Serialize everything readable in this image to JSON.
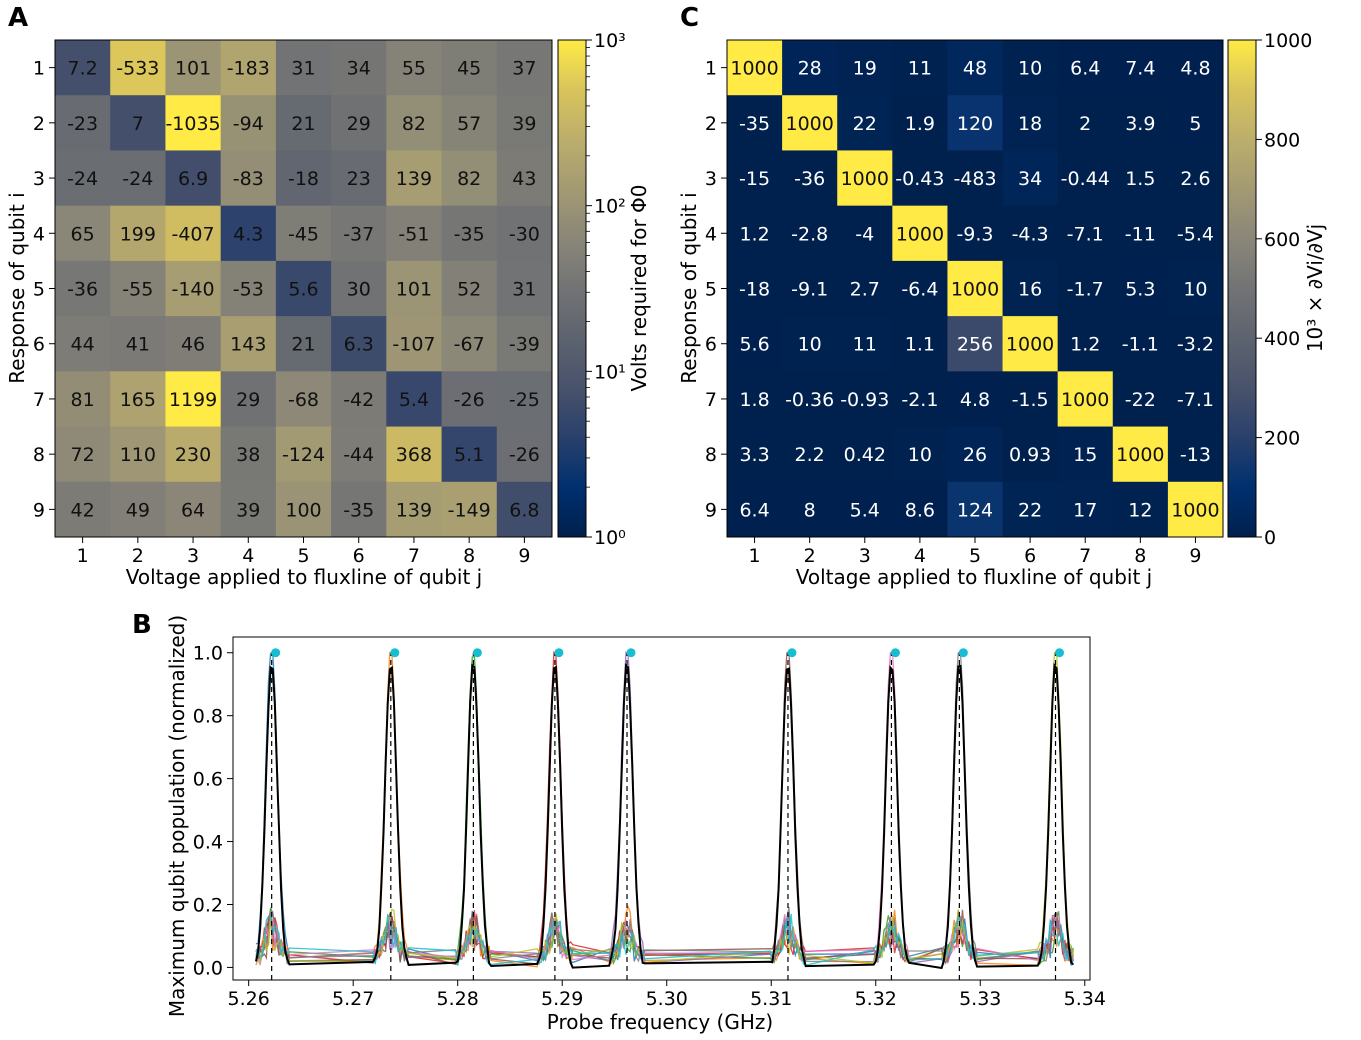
{
  "panels": {
    "A": {
      "letter": "A",
      "xlabel": "Voltage applied to fluxline of qubit j",
      "ylabel": "Response of qubit i",
      "colorbar_label": "Volts required for Φ0",
      "colorbar_ticks": [
        "10³",
        "10²",
        "10¹",
        "10⁰"
      ]
    },
    "B": {
      "letter": "B",
      "xlabel": "Probe frequency (GHz)",
      "ylabel": "Maximum qubit population (normalized)"
    },
    "C": {
      "letter": "C",
      "xlabel": "Voltage applied to fluxline of qubit j",
      "ylabel": "Response of qubit i",
      "colorbar_label": "10³ × ∂Vi/∂Vj",
      "colorbar_ticks": [
        "1000",
        "800",
        "600",
        "400",
        "200",
        "0"
      ]
    }
  },
  "chart_data": [
    {
      "panel": "A",
      "type": "heatmap",
      "x_categories": [
        "1",
        "2",
        "3",
        "4",
        "5",
        "6",
        "7",
        "8",
        "9"
      ],
      "y_categories": [
        "1",
        "2",
        "3",
        "4",
        "5",
        "6",
        "7",
        "8",
        "9"
      ],
      "values": [
        [
          "7.2",
          "-533",
          "101",
          "-183",
          "31",
          "34",
          "55",
          "45",
          "37"
        ],
        [
          "-23",
          "7",
          "-1035",
          "-94",
          "21",
          "29",
          "82",
          "57",
          "39"
        ],
        [
          "-24",
          "-24",
          "6.9",
          "-83",
          "-18",
          "23",
          "139",
          "82",
          "43"
        ],
        [
          "65",
          "199",
          "-407",
          "4.3",
          "-45",
          "-37",
          "-51",
          "-35",
          "-30"
        ],
        [
          "-36",
          "-55",
          "-140",
          "-53",
          "5.6",
          "30",
          "101",
          "52",
          "31"
        ],
        [
          "44",
          "41",
          "46",
          "143",
          "21",
          "6.3",
          "-107",
          "-67",
          "-39"
        ],
        [
          "81",
          "165",
          "1199",
          "29",
          "-68",
          "-42",
          "5.4",
          "-26",
          "-25"
        ],
        [
          "72",
          "110",
          "230",
          "38",
          "-124",
          "-44",
          "368",
          "5.1",
          "-26"
        ],
        [
          "42",
          "49",
          "64",
          "39",
          "100",
          "-35",
          "139",
          "-149",
          "6.8"
        ]
      ],
      "color_scale": "log",
      "clim": [
        1,
        1000
      ],
      "colormap": "cividis",
      "xlabel": "Voltage applied to fluxline of qubit j",
      "ylabel": "Response of qubit i"
    },
    {
      "panel": "C",
      "type": "heatmap",
      "x_categories": [
        "1",
        "2",
        "3",
        "4",
        "5",
        "6",
        "7",
        "8",
        "9"
      ],
      "y_categories": [
        "1",
        "2",
        "3",
        "4",
        "5",
        "6",
        "7",
        "8",
        "9"
      ],
      "values": [
        [
          "1000",
          "28",
          "19",
          "11",
          "48",
          "10",
          "6.4",
          "7.4",
          "4.8"
        ],
        [
          "-35",
          "1000",
          "22",
          "1.9",
          "120",
          "18",
          "2",
          "3.9",
          "5"
        ],
        [
          "-15",
          "-36",
          "1000",
          "-0.43",
          "-483",
          "34",
          "-0.44",
          "1.5",
          "2.6"
        ],
        [
          "1.2",
          "-2.8",
          "-4",
          "1000",
          "-9.3",
          "-4.3",
          "-7.1",
          "-11",
          "-5.4"
        ],
        [
          "-18",
          "-9.1",
          "2.7",
          "-6.4",
          "1000",
          "16",
          "-1.7",
          "5.3",
          "10"
        ],
        [
          "5.6",
          "10",
          "11",
          "1.1",
          "256",
          "1000",
          "1.2",
          "-1.1",
          "-3.2"
        ],
        [
          "1.8",
          "-0.36",
          "-0.93",
          "-2.1",
          "4.8",
          "-1.5",
          "1000",
          "-22",
          "-7.1"
        ],
        [
          "3.3",
          "2.2",
          "0.42",
          "10",
          "26",
          "0.93",
          "15",
          "1000",
          "-13"
        ],
        [
          "6.4",
          "8",
          "5.4",
          "8.6",
          "124",
          "22",
          "17",
          "12",
          "1000"
        ]
      ],
      "color_scale": "linear",
      "clim": [
        0,
        1000
      ],
      "colormap": "cividis",
      "xlabel": "Voltage applied to fluxline of qubit j",
      "ylabel": "Response of qubit i"
    },
    {
      "panel": "B",
      "type": "line",
      "xlabel": "Probe frequency (GHz)",
      "ylabel": "Maximum qubit population (normalized)",
      "xlim": [
        5.2585,
        5.3405
      ],
      "ylim": [
        -0.04,
        1.05
      ],
      "xticks": [
        "5.26",
        "5.27",
        "5.28",
        "5.29",
        "5.30",
        "5.31",
        "5.32",
        "5.33",
        "5.34"
      ],
      "yticks": [
        "0.0",
        "0.2",
        "0.4",
        "0.6",
        "0.8",
        "1.0"
      ],
      "peak_frequencies": [
        5.2622,
        5.2736,
        5.2815,
        5.2893,
        5.2962,
        5.3116,
        5.3215,
        5.328,
        5.3372
      ],
      "peak_markers_y": 1.0,
      "series_colors": [
        "#1f77b4",
        "#ff7f0e",
        "#2ca02c",
        "#d62728",
        "#9467bd",
        "#8c564b",
        "#e377c2",
        "#7f7f7f",
        "#bcbd22",
        "#17becf",
        "#000000"
      ],
      "marker_color": "#17becf",
      "grid": false
    }
  ]
}
